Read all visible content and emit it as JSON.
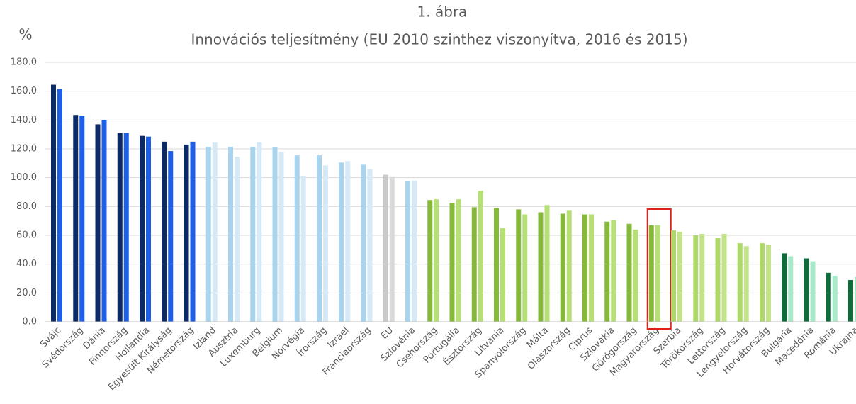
{
  "chart_data": {
    "type": "bar",
    "title": "1. ábra",
    "subtitle": "Innovációs teljesítmény (EU 2010 szinthez viszonyítva, 2016 és 2015)",
    "y_label": "%",
    "categories": [
      "Svájc",
      "Svédország",
      "Dánia",
      "Finnország",
      "Hollandia",
      "Egyesült Királyság",
      "Németország",
      "Izland",
      "Ausztria",
      "Luxemburg",
      "Belgium",
      "Norvégia",
      "Írország",
      "Izrael",
      "Franciaország",
      "EU",
      "Szlovénia",
      "Csehország",
      "Portugália",
      "Észtország",
      "Litvánia",
      "Spanyolország",
      "Málta",
      "Olaszország",
      "Ciprus",
      "Szlovákia",
      "Görögország",
      "Magyarország",
      "Szerbia",
      "Törökország",
      "Lettország",
      "Lengyelország",
      "Horvátország",
      "Bulgária",
      "Macedónia",
      "Románia",
      "Ukrajna"
    ],
    "series": [
      {
        "values": [
          164.5,
          143.5,
          137,
          131,
          129,
          125,
          123,
          121.5,
          121.5,
          121.5,
          121,
          115.5,
          115.5,
          110.5,
          109,
          102,
          97.5,
          84.5,
          82.5,
          79.5,
          79,
          78,
          76,
          75,
          74.5,
          69.5,
          68,
          67,
          63.5,
          60,
          58,
          54.5,
          54.5,
          47.5,
          44,
          34,
          29
        ],
        "colors": [
          "#0b2a66",
          "#0b2a66",
          "#0b2a66",
          "#0b2a66",
          "#0b2a66",
          "#0b2a66",
          "#0b2a66",
          "#a9d4ed",
          "#a9d4ed",
          "#a9d4ed",
          "#a9d4ed",
          "#a9d4ed",
          "#a9d4ed",
          "#a9d4ed",
          "#a9d4ed",
          "#c9c9c9",
          "#a9d4ed",
          "#86b93a",
          "#86b93a",
          "#86b93a",
          "#86b93a",
          "#86b93a",
          "#86b93a",
          "#86b93a",
          "#86b93a",
          "#86b93a",
          "#86b93a",
          "#86b93a",
          "#aed86a",
          "#aed86a",
          "#aed86a",
          "#aed86a",
          "#aed86a",
          "#0e6b3a",
          "#0e6b3a",
          "#0e6b3a",
          "#0e6b3a"
        ]
      },
      {
        "values": [
          161.5,
          143,
          140,
          131,
          128.5,
          118.5,
          125,
          124.5,
          114.5,
          124.5,
          118,
          101,
          108.5,
          111.5,
          106,
          100.5,
          98,
          85,
          85,
          91,
          65,
          74.5,
          81,
          77.5,
          74.5,
          70.5,
          64,
          67,
          62.5,
          61,
          61,
          52.5,
          53.5,
          45.5,
          42,
          32,
          31
        ],
        "colors": [
          "#1f5fe6",
          "#1f5fe6",
          "#1f5fe6",
          "#1f5fe6",
          "#1f5fe6",
          "#1f5fe6",
          "#1f5fe6",
          "#d5eaf6",
          "#d5eaf6",
          "#d5eaf6",
          "#d5eaf6",
          "#d5eaf6",
          "#d5eaf6",
          "#d5eaf6",
          "#d5eaf6",
          "#dadada",
          "#d5eaf6",
          "#b6df76",
          "#b6df76",
          "#b6df76",
          "#b6df76",
          "#b6df76",
          "#b6df76",
          "#b6df76",
          "#b6df76",
          "#b6df76",
          "#b6df76",
          "#b6df76",
          "#c3e38a",
          "#c3e38a",
          "#c3e38a",
          "#c3e38a",
          "#c3e38a",
          "#a7e9c8",
          "#a7e9c8",
          "#a7e9c8",
          "#a7e9c8"
        ]
      }
    ],
    "ylim": [
      0,
      180
    ],
    "yticks": [
      {
        "value": 0,
        "label": "0.0"
      },
      {
        "value": 20,
        "label": "20.0"
      },
      {
        "value": 40,
        "label": "40.0"
      },
      {
        "value": 60,
        "label": "60.0"
      },
      {
        "value": 80,
        "label": "80.0"
      },
      {
        "value": 100,
        "label": "100.0"
      },
      {
        "value": 120,
        "label": "120.0"
      },
      {
        "value": 140,
        "label": "140.0"
      },
      {
        "value": 160,
        "label": "160.0"
      },
      {
        "value": 180,
        "label": "180.0"
      }
    ],
    "grid": true,
    "highlight": "Magyarország"
  }
}
